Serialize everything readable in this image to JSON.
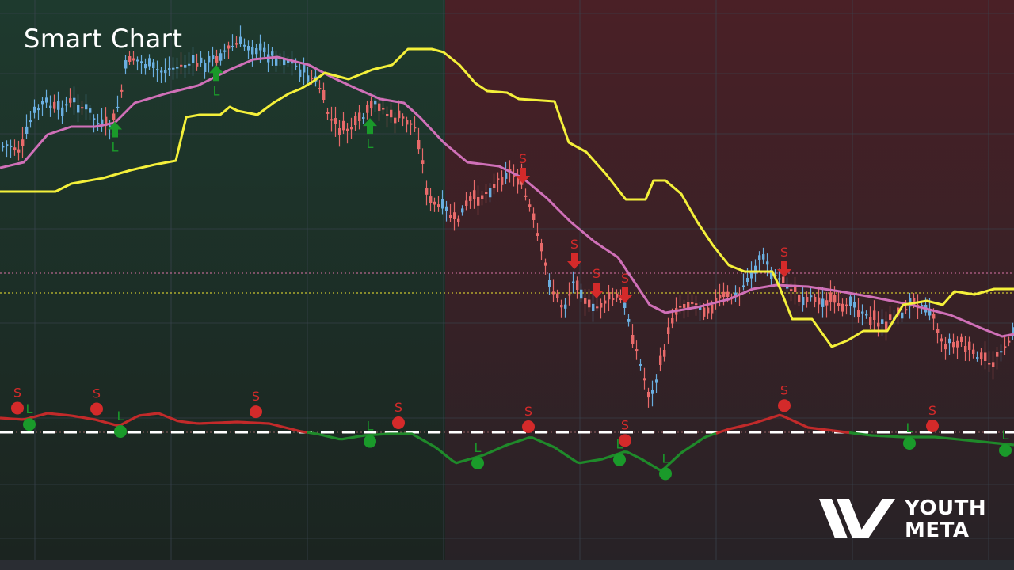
{
  "header": {
    "title": "Smart Chart"
  },
  "brand": {
    "line1": "YOUTH",
    "line2": "META"
  },
  "colors": {
    "bull_zone": "#1e3a2e",
    "bear_zone": "#4a2026",
    "bull_candle": "#6aaee0",
    "bear_candle": "#e86a6a",
    "slow_line": "#f4f03a",
    "ma_line": "#d070b8",
    "osc_bull": "#1f8a2a",
    "osc_bear": "#c22a2a",
    "long_signal": "#1a9a2a",
    "short_signal": "#d42a2a"
  },
  "chart_data": {
    "type": "candlestick",
    "price_panel": {
      "close_series": [
        [
          0,
          185
        ],
        [
          10,
          183
        ],
        [
          25,
          190
        ],
        [
          40,
          145
        ],
        [
          55,
          128
        ],
        [
          70,
          140
        ],
        [
          90,
          128
        ],
        [
          110,
          140
        ],
        [
          125,
          160
        ],
        [
          140,
          158
        ],
        [
          150,
          125
        ],
        [
          160,
          70
        ],
        [
          180,
          80
        ],
        [
          200,
          90
        ],
        [
          220,
          85
        ],
        [
          240,
          80
        ],
        [
          260,
          80
        ],
        [
          280,
          65
        ],
        [
          300,
          55
        ],
        [
          320,
          60
        ],
        [
          340,
          70
        ],
        [
          360,
          75
        ],
        [
          380,
          90
        ],
        [
          400,
          105
        ],
        [
          415,
          150
        ],
        [
          430,
          165
        ],
        [
          445,
          160
        ],
        [
          460,
          145
        ],
        [
          475,
          128
        ],
        [
          490,
          148
        ],
        [
          510,
          150
        ],
        [
          525,
          165
        ],
        [
          540,
          255
        ],
        [
          560,
          265
        ],
        [
          575,
          280
        ],
        [
          590,
          255
        ],
        [
          610,
          245
        ],
        [
          625,
          230
        ],
        [
          640,
          215
        ],
        [
          655,
          228
        ],
        [
          670,
          270
        ],
        [
          680,
          310
        ],
        [
          695,
          365
        ],
        [
          710,
          390
        ],
        [
          725,
          350
        ],
        [
          745,
          395
        ],
        [
          760,
          380
        ],
        [
          780,
          375
        ],
        [
          790,
          395
        ],
        [
          805,
          455
        ],
        [
          820,
          505
        ],
        [
          835,
          450
        ],
        [
          850,
          390
        ],
        [
          870,
          380
        ],
        [
          890,
          390
        ],
        [
          910,
          375
        ],
        [
          930,
          375
        ],
        [
          945,
          345
        ],
        [
          960,
          325
        ],
        [
          975,
          345
        ],
        [
          990,
          360
        ],
        [
          1010,
          375
        ],
        [
          1030,
          375
        ],
        [
          1050,
          382
        ],
        [
          1070,
          385
        ],
        [
          1090,
          395
        ],
        [
          1110,
          410
        ],
        [
          1130,
          400
        ],
        [
          1150,
          385
        ],
        [
          1170,
          385
        ],
        [
          1190,
          435
        ],
        [
          1210,
          430
        ],
        [
          1230,
          450
        ],
        [
          1250,
          460
        ],
        [
          1265,
          440
        ],
        [
          1280,
          420
        ]
      ],
      "ma_line": [
        [
          0,
          212
        ],
        [
          30,
          205
        ],
        [
          60,
          170
        ],
        [
          90,
          160
        ],
        [
          120,
          160
        ],
        [
          145,
          155
        ],
        [
          170,
          130
        ],
        [
          210,
          118
        ],
        [
          250,
          108
        ],
        [
          290,
          88
        ],
        [
          320,
          75
        ],
        [
          350,
          72
        ],
        [
          390,
          82
        ],
        [
          420,
          98
        ],
        [
          450,
          112
        ],
        [
          480,
          125
        ],
        [
          510,
          130
        ],
        [
          530,
          148
        ],
        [
          560,
          180
        ],
        [
          590,
          205
        ],
        [
          630,
          210
        ],
        [
          660,
          225
        ],
        [
          690,
          250
        ],
        [
          720,
          280
        ],
        [
          750,
          305
        ],
        [
          780,
          325
        ],
        [
          800,
          355
        ],
        [
          820,
          385
        ],
        [
          840,
          395
        ],
        [
          880,
          388
        ],
        [
          920,
          378
        ],
        [
          950,
          365
        ],
        [
          980,
          360
        ],
        [
          1020,
          362
        ],
        [
          1060,
          368
        ],
        [
          1100,
          375
        ],
        [
          1150,
          385
        ],
        [
          1200,
          398
        ],
        [
          1240,
          415
        ],
        [
          1265,
          425
        ],
        [
          1280,
          422
        ]
      ],
      "slow_line": [
        [
          0,
          242
        ],
        [
          20,
          242
        ],
        [
          40,
          242
        ],
        [
          70,
          242
        ],
        [
          90,
          232
        ],
        [
          130,
          225
        ],
        [
          165,
          215
        ],
        [
          195,
          208
        ],
        [
          222,
          203
        ],
        [
          235,
          148
        ],
        [
          252,
          145
        ],
        [
          278,
          145
        ],
        [
          290,
          135
        ],
        [
          300,
          140
        ],
        [
          325,
          145
        ],
        [
          345,
          130
        ],
        [
          365,
          118
        ],
        [
          380,
          112
        ],
        [
          395,
          103
        ],
        [
          410,
          92
        ],
        [
          440,
          100
        ],
        [
          470,
          88
        ],
        [
          495,
          82
        ],
        [
          515,
          62
        ],
        [
          545,
          62
        ],
        [
          560,
          66
        ],
        [
          580,
          82
        ],
        [
          600,
          105
        ],
        [
          615,
          115
        ],
        [
          640,
          117
        ],
        [
          655,
          125
        ],
        [
          700,
          128
        ],
        [
          718,
          180
        ],
        [
          740,
          192
        ],
        [
          765,
          220
        ],
        [
          790,
          252
        ],
        [
          815,
          252
        ],
        [
          825,
          228
        ],
        [
          840,
          228
        ],
        [
          860,
          245
        ],
        [
          880,
          280
        ],
        [
          900,
          310
        ],
        [
          920,
          335
        ],
        [
          940,
          343
        ],
        [
          975,
          343
        ],
        [
          985,
          365
        ],
        [
          1000,
          403
        ],
        [
          1025,
          403
        ],
        [
          1050,
          438
        ],
        [
          1070,
          430
        ],
        [
          1090,
          418
        ],
        [
          1120,
          418
        ],
        [
          1140,
          385
        ],
        [
          1170,
          380
        ],
        [
          1190,
          385
        ],
        [
          1205,
          368
        ],
        [
          1230,
          372
        ],
        [
          1255,
          365
        ],
        [
          1280,
          365
        ]
      ]
    },
    "reference_levels": [
      {
        "name": "upper",
        "color": "#d070a0"
      },
      {
        "name": "lower",
        "color": "#e8e030"
      }
    ],
    "oscillator": {
      "zero_line": "dashed",
      "series": [
        [
          0,
          528
        ],
        [
          30,
          530
        ],
        [
          60,
          522
        ],
        [
          90,
          525
        ],
        [
          120,
          530
        ],
        [
          150,
          538
        ],
        [
          175,
          525
        ],
        [
          200,
          522
        ],
        [
          225,
          532
        ],
        [
          250,
          535
        ],
        [
          300,
          533
        ],
        [
          340,
          535
        ],
        [
          360,
          540
        ],
        [
          380,
          545
        ],
        [
          400,
          548
        ],
        [
          430,
          555
        ],
        [
          460,
          550
        ],
        [
          490,
          548
        ],
        [
          520,
          548
        ],
        [
          550,
          565
        ],
        [
          575,
          585
        ],
        [
          610,
          575
        ],
        [
          640,
          562
        ],
        [
          670,
          552
        ],
        [
          700,
          565
        ],
        [
          730,
          585
        ],
        [
          760,
          580
        ],
        [
          790,
          570
        ],
        [
          810,
          580
        ],
        [
          835,
          595
        ],
        [
          860,
          572
        ],
        [
          890,
          552
        ],
        [
          920,
          542
        ],
        [
          950,
          535
        ],
        [
          985,
          524
        ],
        [
          1020,
          540
        ],
        [
          1060,
          545
        ],
        [
          1100,
          550
        ],
        [
          1140,
          552
        ],
        [
          1180,
          552
        ],
        [
          1220,
          556
        ],
        [
          1260,
          560
        ],
        [
          1280,
          562
        ]
      ]
    },
    "signals": {
      "price": [
        {
          "type": "L",
          "x": 145
        },
        {
          "type": "L",
          "x": 273
        },
        {
          "type": "L",
          "x": 467
        },
        {
          "type": "S",
          "x": 660
        },
        {
          "type": "S",
          "x": 725
        },
        {
          "type": "S",
          "x": 753
        },
        {
          "type": "S",
          "x": 789
        },
        {
          "type": "S",
          "x": 990
        }
      ],
      "oscillator": [
        {
          "type": "S",
          "x": 22
        },
        {
          "type": "L",
          "x": 37
        },
        {
          "type": "S",
          "x": 122
        },
        {
          "type": "L",
          "x": 152
        },
        {
          "type": "S",
          "x": 323
        },
        {
          "type": "L",
          "x": 467
        },
        {
          "type": "S",
          "x": 503
        },
        {
          "type": "L",
          "x": 603
        },
        {
          "type": "S",
          "x": 667
        },
        {
          "type": "L",
          "x": 782
        },
        {
          "type": "S",
          "x": 789
        },
        {
          "type": "L",
          "x": 840
        },
        {
          "type": "S",
          "x": 990
        },
        {
          "type": "L",
          "x": 1148
        },
        {
          "type": "S",
          "x": 1177
        },
        {
          "type": "L",
          "x": 1269
        }
      ]
    },
    "grid": true
  }
}
